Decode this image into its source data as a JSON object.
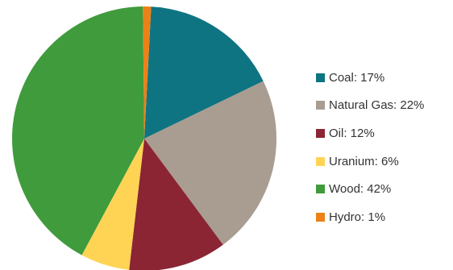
{
  "chart_data": {
    "type": "pie",
    "title": "",
    "start_angle_deg": 3,
    "direction": "clockwise",
    "legend_position": "right",
    "series": [
      {
        "label": "Coal: 17%",
        "name": "Coal",
        "value": 17,
        "color": "#0f7482"
      },
      {
        "label": "Natural Gas: 22%",
        "name": "Natural Gas",
        "value": 22,
        "color": "#a99d91"
      },
      {
        "label": "Oil: 12%",
        "name": "Oil",
        "value": 12,
        "color": "#8b2534"
      },
      {
        "label": "Uranium: 6%",
        "name": "Uranium",
        "value": 6,
        "color": "#ffd454"
      },
      {
        "label": "Wood: 42%",
        "name": "Wood",
        "value": 42,
        "color": "#409b3c"
      },
      {
        "label": "Hydro: 1%",
        "name": "Hydro",
        "value": 1,
        "color": "#ec8117"
      }
    ]
  }
}
